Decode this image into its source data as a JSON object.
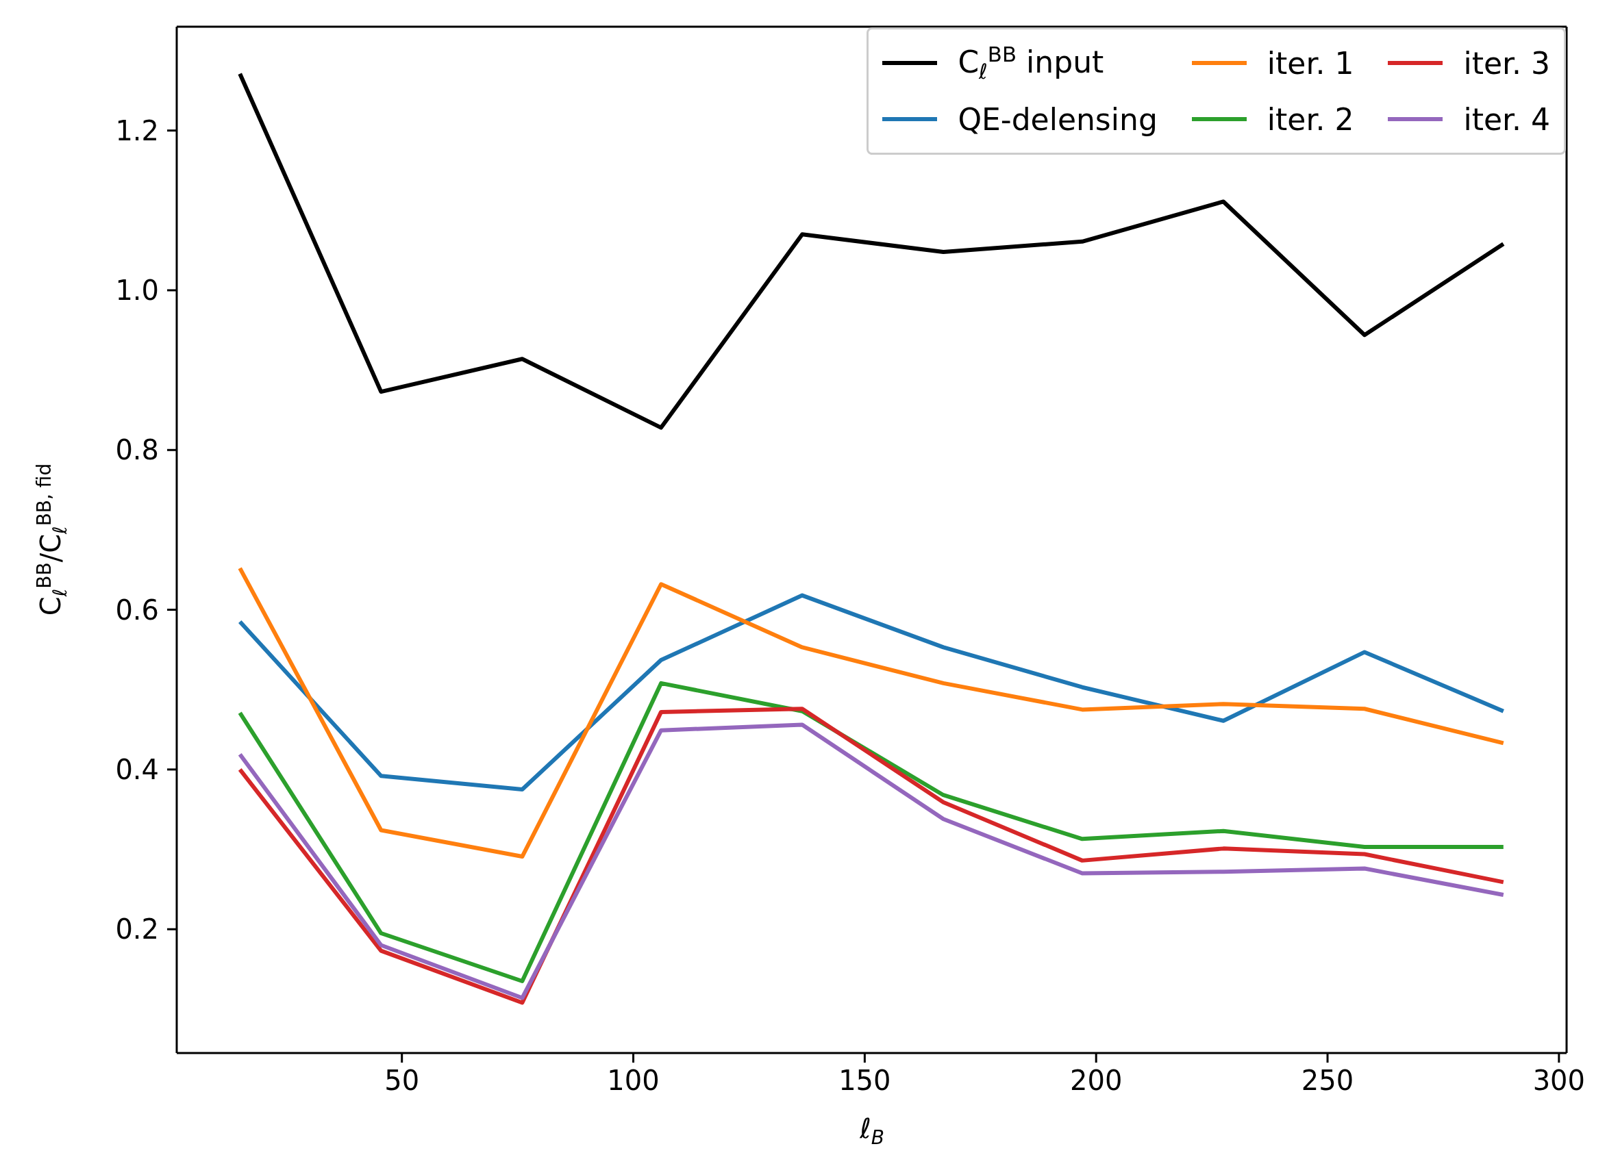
{
  "chart_data": {
    "type": "line",
    "xlabel": "ℓ$_{B}$",
    "ylabel": "C$_{ℓ}$$^{BB}$/C$_{ℓ}$$^{BB, fid}$",
    "x": [
      15,
      45.5,
      76,
      106,
      136.5,
      167,
      197,
      227.5,
      258,
      288
    ],
    "series": [
      {
        "name": "C$_{ℓ}$$^{BB}$ input",
        "color": "#000000",
        "values": [
          1.271,
          0.873,
          0.914,
          0.828,
          1.07,
          1.048,
          1.061,
          1.111,
          0.944,
          1.058
        ]
      },
      {
        "name": "QE-delensing",
        "color": "#1f77b4",
        "values": [
          0.585,
          0.392,
          0.375,
          0.537,
          0.618,
          0.553,
          0.503,
          0.461,
          0.547,
          0.473
        ]
      },
      {
        "name": "iter. 1",
        "color": "#ff7f0e",
        "values": [
          0.652,
          0.324,
          0.291,
          0.632,
          0.553,
          0.508,
          0.475,
          0.482,
          0.476,
          0.433
        ]
      },
      {
        "name": "iter. 2",
        "color": "#2ca02c",
        "values": [
          0.471,
          0.195,
          0.135,
          0.508,
          0.473,
          0.368,
          0.313,
          0.323,
          0.303,
          0.303
        ]
      },
      {
        "name": "iter. 3",
        "color": "#d62728",
        "values": [
          0.4,
          0.173,
          0.108,
          0.472,
          0.476,
          0.359,
          0.286,
          0.301,
          0.294,
          0.259
        ]
      },
      {
        "name": "iter. 4",
        "color": "#9467bd",
        "values": [
          0.419,
          0.18,
          0.114,
          0.449,
          0.456,
          0.338,
          0.27,
          0.272,
          0.276,
          0.243
        ]
      }
    ],
    "xlim": [
      1.35,
      301.65
    ],
    "xticks": [
      50,
      100,
      150,
      200,
      250,
      300
    ],
    "ylim": [
      0.045,
      1.33
    ],
    "yticks": [
      0.2,
      0.4,
      0.6,
      0.8,
      {
        "value": 1,
        "label": "1.0"
      },
      1.2
    ],
    "grid": false,
    "legend": "top right",
    "marker": "none",
    "line_style": "solid"
  }
}
